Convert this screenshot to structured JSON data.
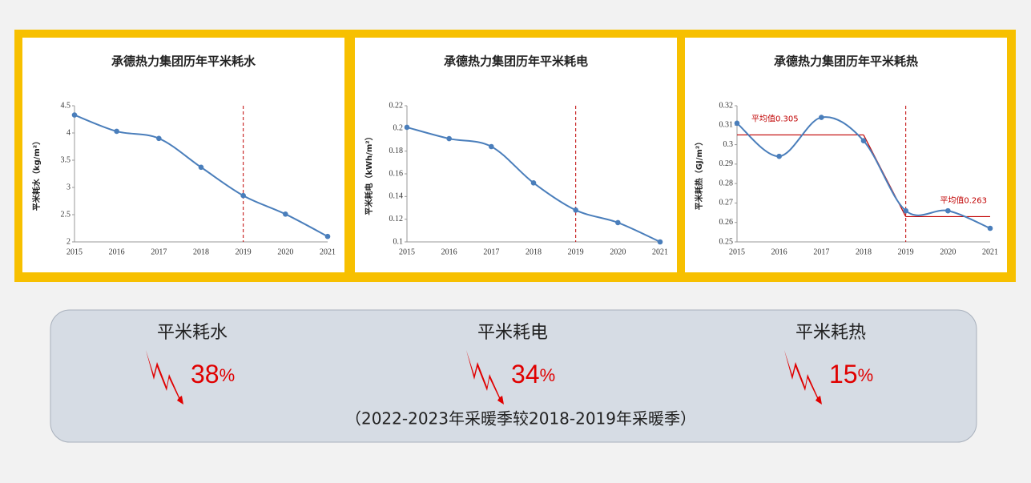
{
  "chart_data": [
    {
      "type": "line",
      "title": "承德热力集团历年平米耗水",
      "y_label": "平米耗水（kg/m²）",
      "x": [
        "2015",
        "2016",
        "2017",
        "2018",
        "2019",
        "2020",
        "2021"
      ],
      "series": [
        {
          "color": "#4a7ebb",
          "values": [
            4.33,
            4.03,
            3.9,
            3.37,
            2.85,
            2.51,
            2.1
          ]
        }
      ],
      "ylim": [
        2,
        4.5
      ],
      "yticks": [
        2,
        2.5,
        3,
        3.5,
        4,
        4.5
      ],
      "marker_x": "2019",
      "marker_color": "#c00000",
      "smooth": true
    },
    {
      "type": "line",
      "title": "承德热力集团历年平米耗电",
      "y_label": "平米耗电（kWh/m²）",
      "x": [
        "2015",
        "2016",
        "2017",
        "2018",
        "2019",
        "2020",
        "2021"
      ],
      "series": [
        {
          "color": "#4a7ebb",
          "values": [
            0.201,
            0.191,
            0.184,
            0.152,
            0.128,
            0.117,
            0.1
          ]
        }
      ],
      "ylim": [
        0.1,
        0.22
      ],
      "yticks": [
        0.1,
        0.12,
        0.14,
        0.16,
        0.18,
        0.2,
        0.22
      ],
      "marker_x": "2019",
      "marker_color": "#c00000",
      "smooth": true
    },
    {
      "type": "line",
      "title": "承德热力集团历年平米耗热",
      "y_label": "平米耗热（GJ/m²）",
      "x": [
        "2015",
        "2016",
        "2017",
        "2018",
        "2019",
        "2020",
        "2021"
      ],
      "series": [
        {
          "color": "#4a7ebb",
          "values": [
            0.311,
            0.294,
            0.314,
            0.302,
            0.266,
            0.266,
            0.257
          ]
        }
      ],
      "ylim": [
        0.25,
        0.32
      ],
      "yticks": [
        0.25,
        0.26,
        0.27,
        0.28,
        0.29,
        0.3,
        0.31,
        0.32
      ],
      "marker_x": "2019",
      "marker_color": "#c00000",
      "smooth": true,
      "averages": [
        {
          "label": "平均值0.305",
          "value": 0.305,
          "x_range": [
            "2015",
            "2018"
          ]
        },
        {
          "label": "平均值0.263",
          "value": 0.263,
          "x_range": [
            "2019",
            "2021"
          ]
        }
      ]
    }
  ],
  "summary": {
    "items": [
      {
        "name": "平米耗水",
        "value": 38,
        "unit": "%"
      },
      {
        "name": "平米耗电",
        "value": 34,
        "unit": "%"
      },
      {
        "name": "平米耗热",
        "value": 15,
        "unit": "%"
      }
    ],
    "note": "（2022-2023年采暖季较2018-2019年采暖季）"
  }
}
